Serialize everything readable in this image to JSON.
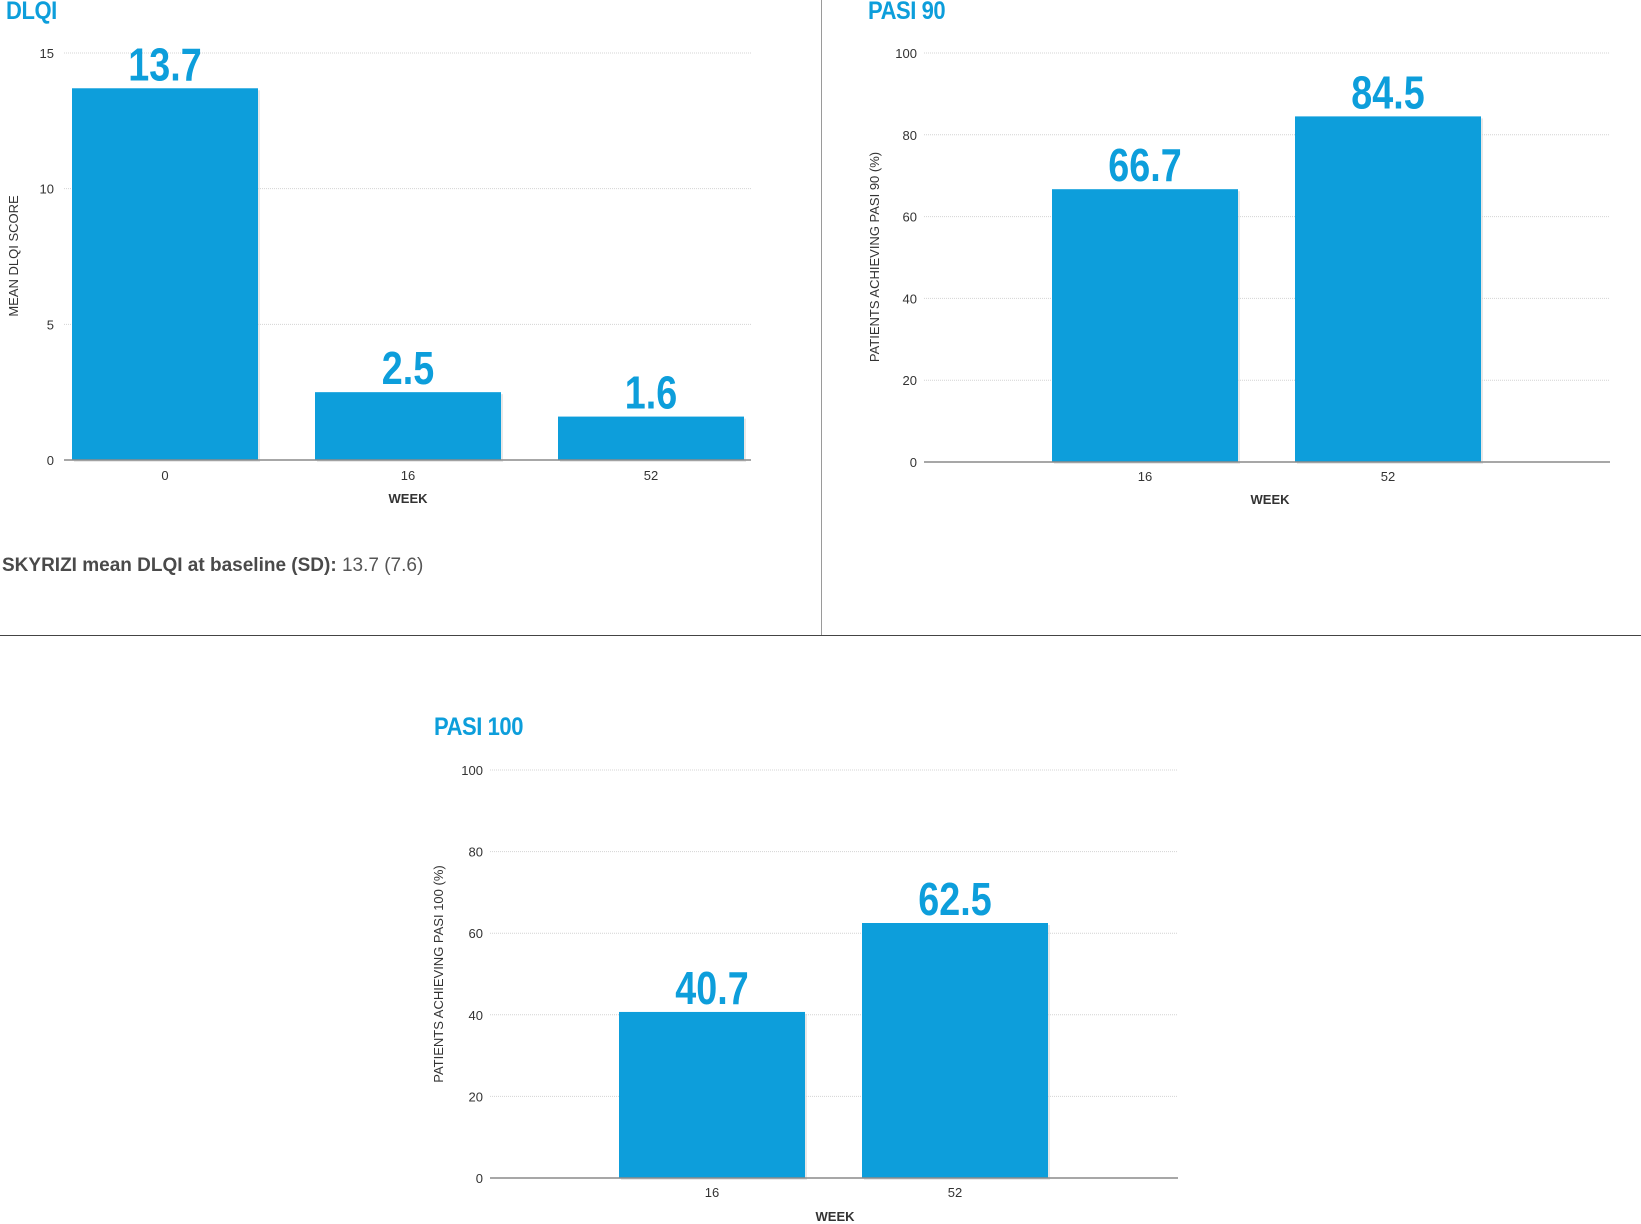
{
  "chart_data": [
    {
      "type": "bar",
      "title": "DLQI",
      "categories": [
        "0",
        "16",
        "52"
      ],
      "values": [
        13.7,
        2.5,
        1.6
      ],
      "value_labels": [
        "13.7",
        "2.5",
        "1.6"
      ],
      "xlabel": "WEEK",
      "ylabel": "MEAN DLQI SCORE",
      "ylim": [
        0,
        15
      ],
      "yticks": [
        0,
        5,
        10,
        15
      ],
      "grid": true,
      "bar_color": "#0d9edb"
    },
    {
      "type": "bar",
      "title": "PASI 90",
      "categories": [
        "16",
        "52"
      ],
      "values": [
        66.7,
        84.5
      ],
      "value_labels": [
        "66.7",
        "84.5"
      ],
      "xlabel": "WEEK",
      "ylabel": "PATIENTS ACHIEVING PASI 90 (%)",
      "ylim": [
        0,
        100
      ],
      "yticks": [
        0,
        20,
        40,
        60,
        80,
        100
      ],
      "grid": true,
      "bar_color": "#0d9edb"
    },
    {
      "type": "bar",
      "title": "PASI 100",
      "categories": [
        "16",
        "52"
      ],
      "values": [
        40.7,
        62.5
      ],
      "value_labels": [
        "40.7",
        "62.5"
      ],
      "xlabel": "WEEK",
      "ylabel": "PATIENTS ACHIEVING PASI 100 (%)",
      "ylim": [
        0,
        100
      ],
      "yticks": [
        0,
        20,
        40,
        60,
        80,
        100
      ],
      "grid": true,
      "bar_color": "#0d9edb"
    }
  ],
  "footnote": {
    "label": "SKYRIZI mean DLQI at baseline (SD):",
    "value": "13.7 (7.6)"
  }
}
